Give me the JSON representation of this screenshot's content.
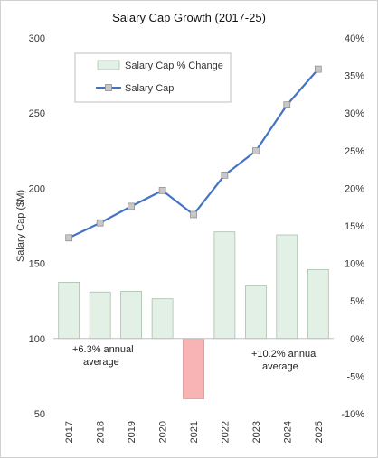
{
  "chart_data": {
    "type": "bar",
    "title": "Salary Cap Growth (2017-25)",
    "categories": [
      "2017",
      "2018",
      "2019",
      "2020",
      "2021",
      "2022",
      "2023",
      "2024",
      "2025"
    ],
    "ylabel": "Salary Cap ($M)",
    "y_left_lim": [
      50,
      300
    ],
    "y_left_ticks": [
      50,
      100,
      150,
      200,
      250,
      300
    ],
    "y_right_lim": [
      -10,
      40
    ],
    "y_right_ticks": [
      -10,
      -5,
      0,
      5,
      10,
      15,
      20,
      25,
      30,
      35,
      40
    ],
    "y_right_tick_suffix": "%",
    "grid": false,
    "legend_position": "top-left",
    "series": [
      {
        "name": "Salary Cap % Change",
        "type": "bar",
        "axis": "right",
        "values": [
          7.5,
          6.2,
          6.3,
          5.3,
          -8.0,
          14.2,
          7.0,
          13.8,
          9.2
        ],
        "color": "#e2f0e6",
        "negative_color": "#f8b4b4"
      },
      {
        "name": "Salary Cap",
        "type": "line",
        "axis": "left",
        "values": [
          167,
          177,
          188,
          198.5,
          182.5,
          208.8,
          224.8,
          255.4,
          279.2
        ],
        "color": "#4472c4",
        "marker_color": "#c8c8c8"
      }
    ],
    "annotations": [
      {
        "lines": [
          "+6.3% annual",
          "average"
        ]
      },
      {
        "lines": [
          "+10.2% annual",
          "average"
        ]
      }
    ]
  }
}
